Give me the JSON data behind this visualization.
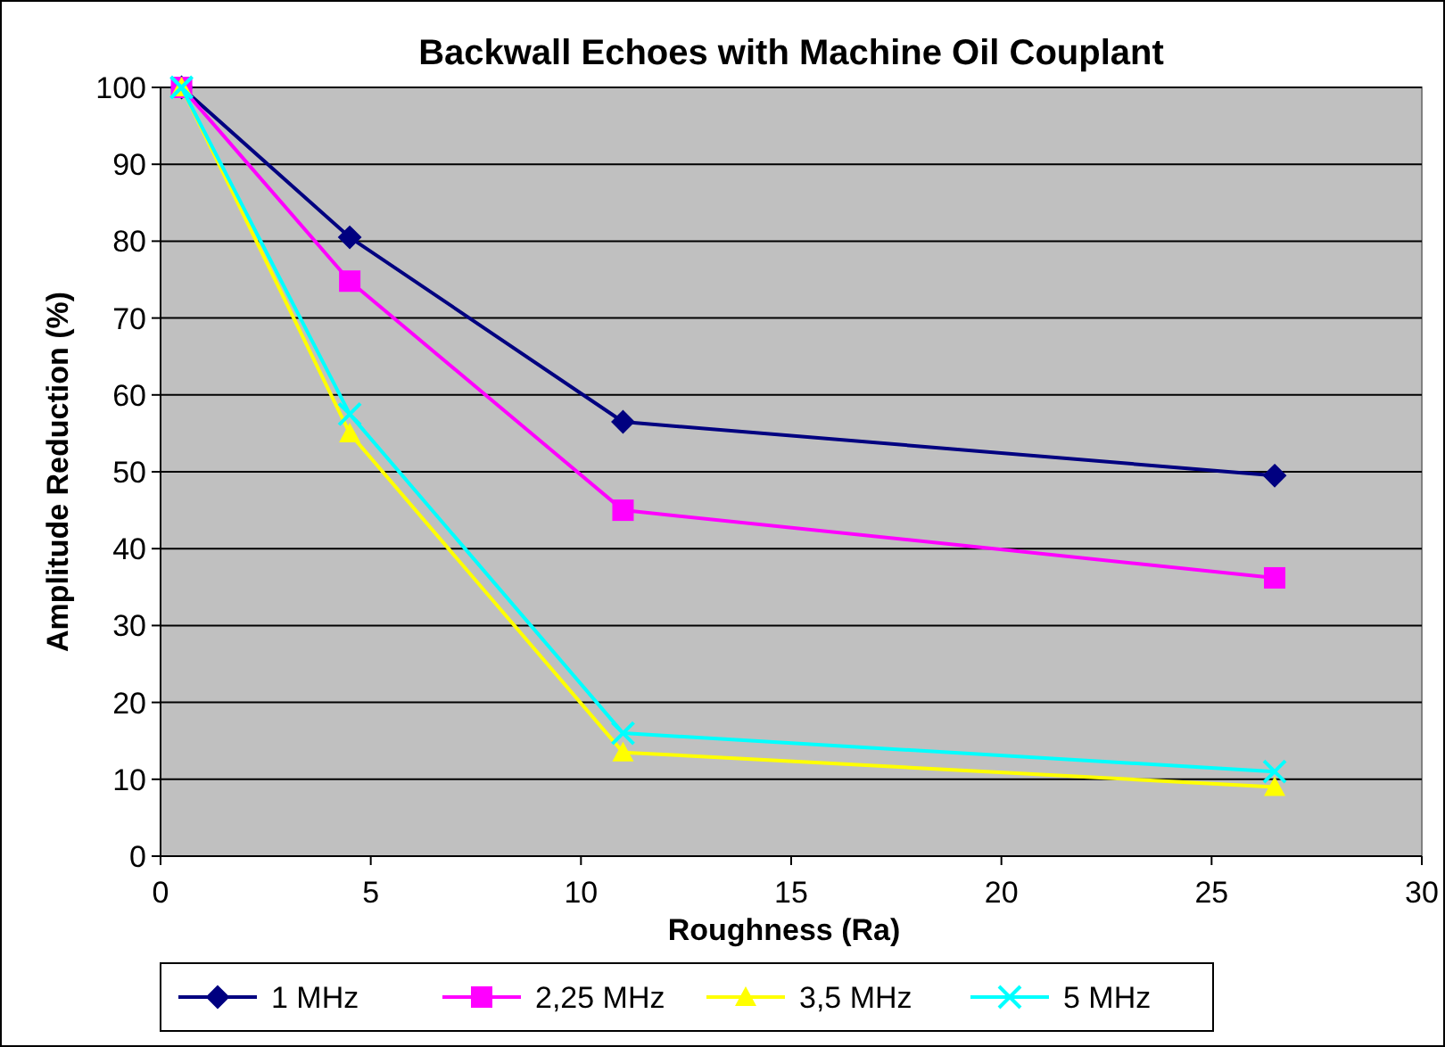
{
  "chart_data": {
    "type": "line",
    "title": "Backwall Echoes with Machine Oil Couplant",
    "xlabel": "Roughness (Ra)",
    "ylabel": "Amplitude Reduction (%)",
    "x": [
      0.5,
      4.5,
      11,
      26.5
    ],
    "series": [
      {
        "name": "1 MHz",
        "color": "#000080",
        "marker": "diamond",
        "values": [
          100,
          80.5,
          56.5,
          49.5
        ]
      },
      {
        "name": "2,25 MHz",
        "color": "#ff00ff",
        "marker": "square",
        "values": [
          100,
          74.8,
          45,
          36.2
        ]
      },
      {
        "name": "3,5 MHz",
        "color": "#ffff00",
        "marker": "triangle",
        "values": [
          100,
          55,
          13.5,
          9
        ]
      },
      {
        "name": "5 MHz",
        "color": "#00ffff",
        "marker": "cross",
        "values": [
          100,
          57.5,
          16,
          11
        ]
      }
    ],
    "xlim": [
      0,
      30
    ],
    "xticks": [
      0,
      5,
      10,
      15,
      20,
      25,
      30
    ],
    "ylim": [
      0,
      100
    ],
    "yticks": [
      0,
      10,
      20,
      30,
      40,
      50,
      60,
      70,
      80,
      90,
      100
    ],
    "grid": "y",
    "legend": "bottom",
    "line_style": "solid"
  }
}
